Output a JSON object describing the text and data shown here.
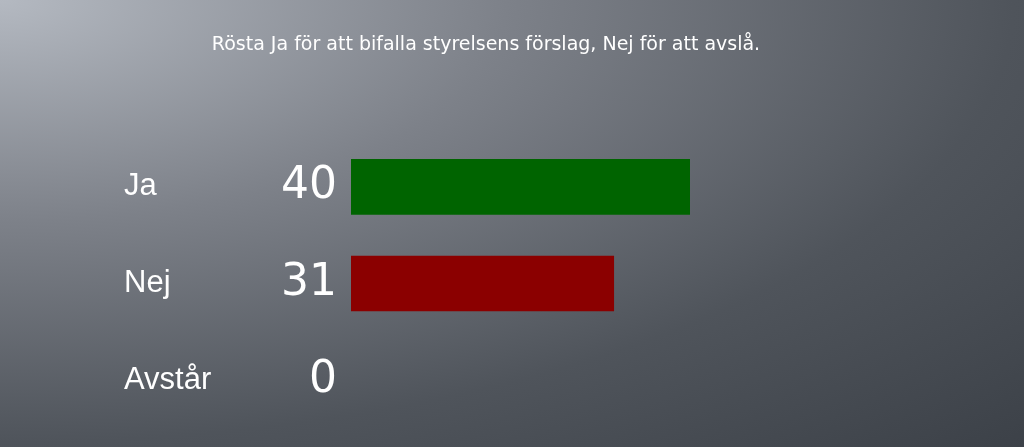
{
  "chart_data": {
    "type": "bar",
    "orientation": "horizontal",
    "title": "Rösta Ja för att bifalla styrelsens förslag, Nej för att avslå.",
    "categories": [
      "Ja",
      "Nej",
      "Avstår"
    ],
    "values": [
      40,
      31,
      0
    ],
    "colors": [
      "#006400",
      "#8b0000",
      null
    ],
    "data_labels": true,
    "grid": false,
    "legend": false
  }
}
